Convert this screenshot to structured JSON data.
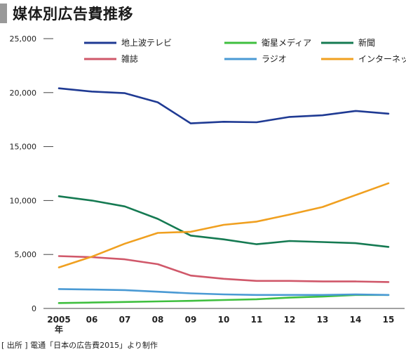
{
  "title": "媒体別広告費推移",
  "source": "[ 出所 ] 電通「日本の広告費2015」より制作",
  "colors": {
    "title_accent": "#999999",
    "axis": "#444444"
  },
  "chart_data": {
    "type": "line",
    "x": [
      "2005",
      "06",
      "07",
      "08",
      "09",
      "10",
      "11",
      "12",
      "13",
      "14",
      "15"
    ],
    "x_sublabel": "年",
    "ylim": [
      0,
      25000
    ],
    "yticks": [
      "0",
      "5,000",
      "10,000",
      "15,000",
      "20,000",
      "25,000"
    ],
    "ytick_values": [
      0,
      5000,
      10000,
      15000,
      20000,
      25000
    ],
    "grid": false,
    "legend_position": "top",
    "series": [
      {
        "name": "地上波テレビ",
        "color": "#1f3a93",
        "values": [
          20400,
          20100,
          19950,
          19100,
          17150,
          17300,
          17250,
          17750,
          17900,
          18300,
          18050
        ]
      },
      {
        "name": "衛星メディア",
        "color": "#3fbf3f",
        "values": [
          500,
          550,
          600,
          650,
          700,
          780,
          850,
          1000,
          1100,
          1250,
          1250
        ]
      },
      {
        "name": "新聞",
        "color": "#157a52",
        "values": [
          10400,
          10000,
          9450,
          8300,
          6750,
          6400,
          5950,
          6250,
          6150,
          6050,
          5700
        ]
      },
      {
        "name": "雑誌",
        "color": "#d0586a",
        "values": [
          4850,
          4750,
          4550,
          4100,
          3050,
          2750,
          2550,
          2550,
          2500,
          2500,
          2450
        ]
      },
      {
        "name": "ラジオ",
        "color": "#4a9ad4",
        "values": [
          1800,
          1750,
          1700,
          1550,
          1400,
          1300,
          1250,
          1250,
          1250,
          1300,
          1250
        ]
      },
      {
        "name": "インターネット",
        "color": "#f0a020",
        "values": [
          3800,
          4800,
          6000,
          7000,
          7100,
          7750,
          8050,
          8700,
          9400,
          10500,
          11600
        ]
      }
    ]
  }
}
